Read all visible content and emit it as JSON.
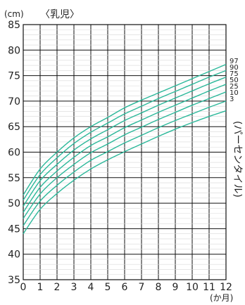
{
  "chart_data": {
    "type": "line",
    "title": "〈乳児〉",
    "ylabel": "(cm)",
    "xlabel": "(か月)",
    "x": [
      0,
      1,
      2,
      3,
      4,
      5,
      6,
      7,
      8,
      9,
      10,
      11,
      12
    ],
    "xlim": [
      0,
      12
    ],
    "ylim": [
      35,
      85
    ],
    "x_ticks": [
      "0",
      "1",
      "2",
      "3",
      "4",
      "5",
      "6",
      "7",
      "8",
      "9",
      "10",
      "11",
      "12"
    ],
    "y_ticks": [
      "35",
      "40",
      "45",
      "50",
      "55",
      "60",
      "65",
      "70",
      "75",
      "80",
      "85"
    ],
    "grid": true,
    "series_axis_label": "(パーセンタイル)",
    "series": [
      {
        "name": "97",
        "values": [
          51.6,
          56.7,
          60.0,
          62.8,
          65.0,
          66.8,
          68.7,
          70.2,
          71.6,
          73.0,
          74.4,
          75.8,
          77.2
        ]
      },
      {
        "name": "90",
        "values": [
          50.6,
          55.6,
          58.9,
          61.7,
          63.9,
          65.7,
          67.5,
          69.0,
          70.5,
          71.9,
          73.3,
          74.7,
          76.0
        ]
      },
      {
        "name": "75",
        "values": [
          49.4,
          54.4,
          57.6,
          60.4,
          62.6,
          64.4,
          66.2,
          67.7,
          69.2,
          70.6,
          72.0,
          73.4,
          74.7
        ]
      },
      {
        "name": "50",
        "values": [
          48.2,
          53.1,
          56.3,
          59.0,
          61.3,
          63.0,
          64.8,
          66.3,
          67.8,
          69.2,
          70.6,
          72.0,
          73.3
        ]
      },
      {
        "name": "25",
        "values": [
          47.0,
          51.8,
          55.0,
          57.6,
          59.9,
          61.6,
          63.4,
          64.9,
          66.4,
          67.8,
          69.2,
          70.5,
          71.8
        ]
      },
      {
        "name": "10",
        "values": [
          45.6,
          50.4,
          53.5,
          56.1,
          58.4,
          60.1,
          61.8,
          63.3,
          64.8,
          66.2,
          67.5,
          68.8,
          70.0
        ]
      },
      {
        "name": "3",
        "values": [
          44.0,
          48.8,
          51.9,
          54.5,
          56.7,
          58.5,
          60.1,
          61.6,
          63.1,
          64.5,
          65.8,
          67.0,
          68.1
        ]
      }
    ],
    "line_color": "#2bb89a"
  }
}
